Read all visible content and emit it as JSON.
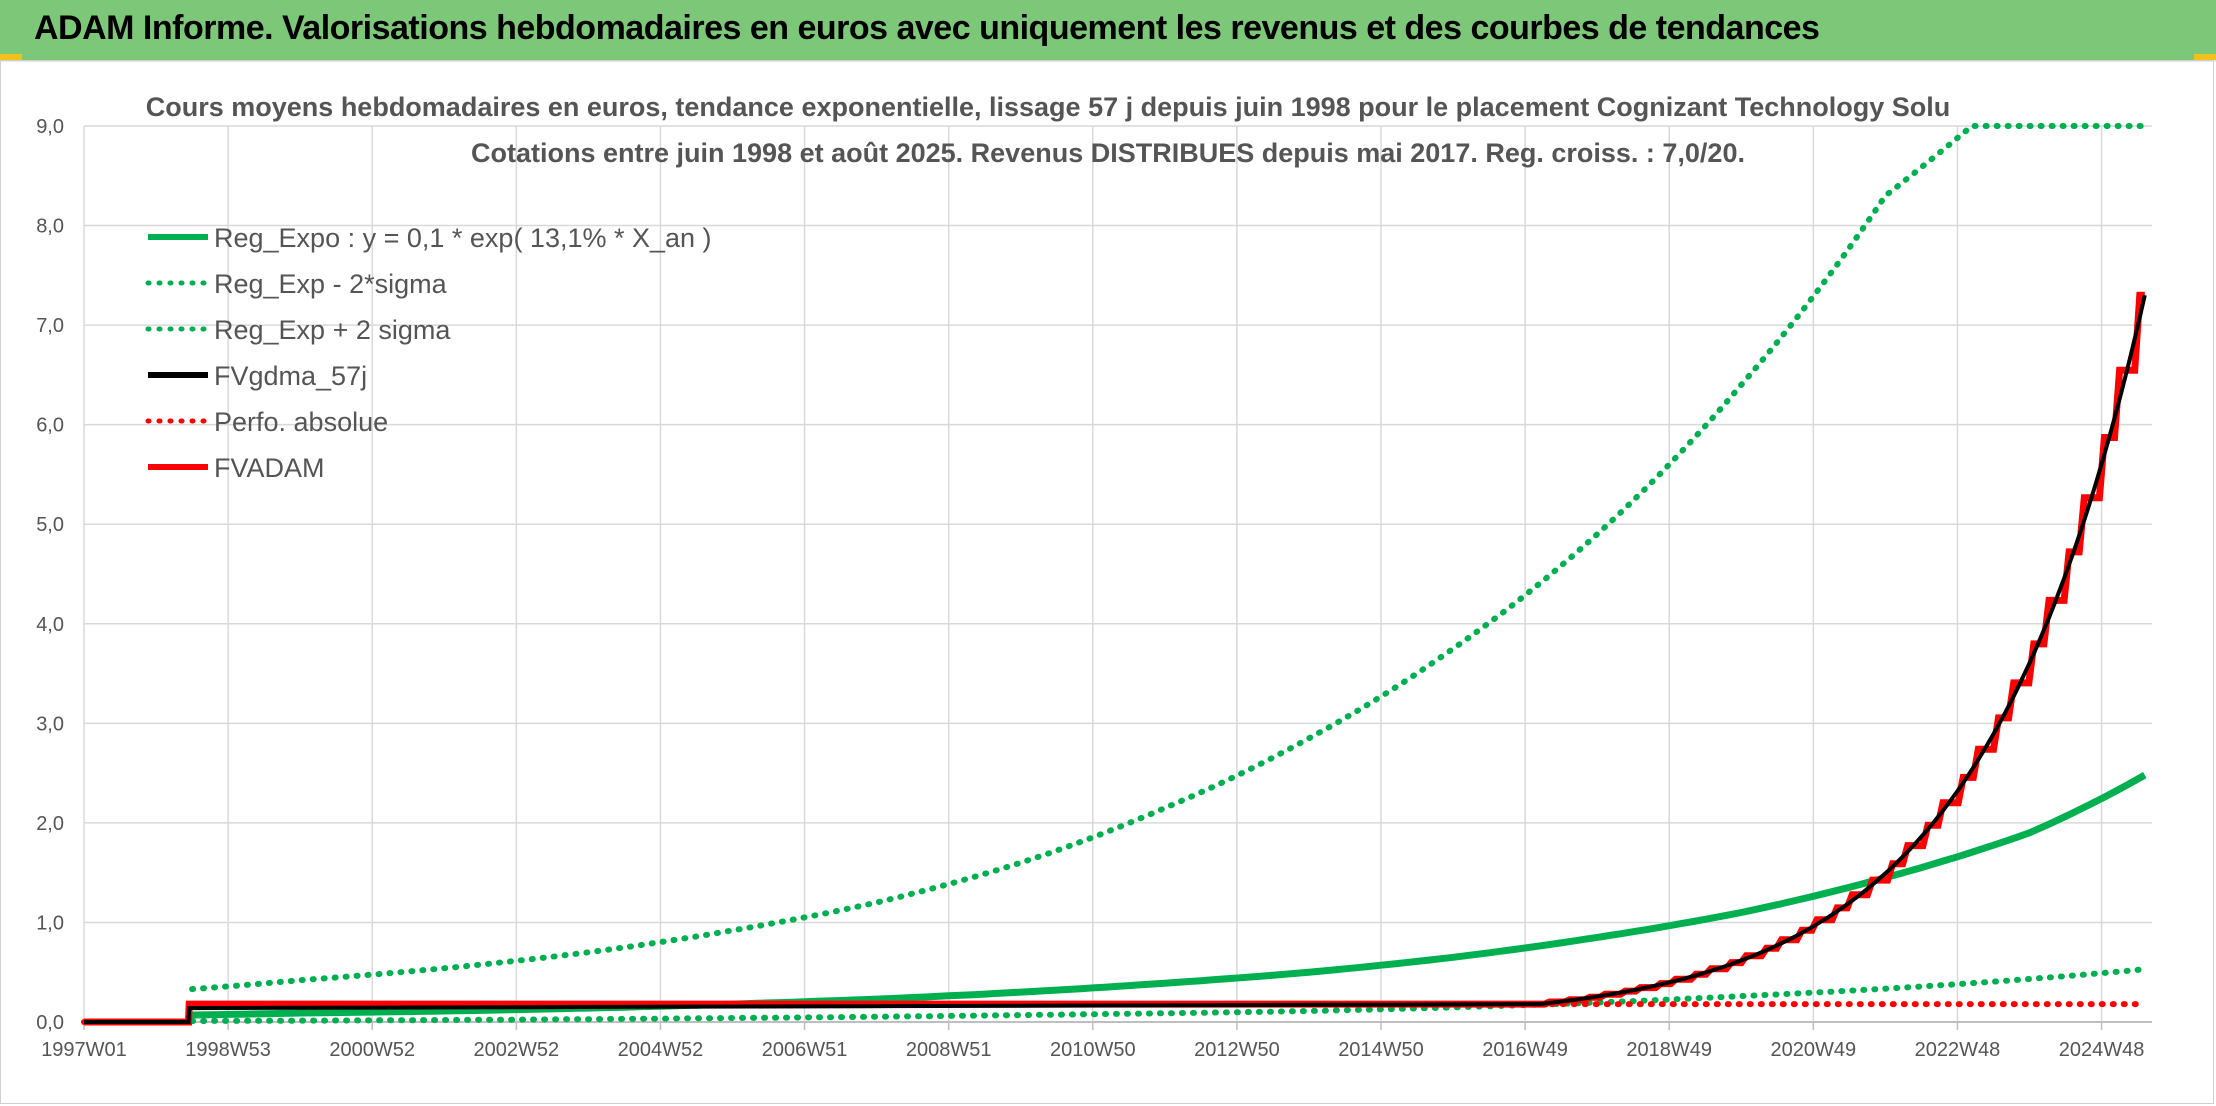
{
  "header": {
    "title": "ADAM Informe. Valorisations hebdomadaires en euros avec uniquement les revenus et des courbes de tendances"
  },
  "colors": {
    "header_bg": "#7dc878",
    "reg_green": "#00b050",
    "fv_black": "#000000",
    "adam_red": "#ff0000",
    "grid": "#d9d9d9"
  },
  "chart_data": {
    "type": "line",
    "title_line1": "Cours moyens hebdomadaires en euros, tendance exponentielle, lissage 57 j depuis juin 1998 pour le placement Cognizant Technology Solu",
    "title_line2": "Cotations entre juin 1998 et août 2025. Revenus DISTRIBUES depuis mai 2017. Reg. croiss. : 7,0/20.",
    "xlabel": "",
    "ylabel": "",
    "x_range": [
      1997.0,
      2025.7
    ],
    "ylim": [
      0,
      9
    ],
    "y_ticks": [
      "0,0",
      "1,0",
      "2,0",
      "3,0",
      "4,0",
      "5,0",
      "6,0",
      "7,0",
      "8,0",
      "9,0"
    ],
    "x_tick_labels": [
      "1997W01",
      "1998W53",
      "2000W52",
      "2002W52",
      "2004W52",
      "2006W51",
      "2008W51",
      "2010W50",
      "2012W50",
      "2014W50",
      "2016W49",
      "2018W49",
      "2020W49",
      "2022W48",
      "2024W48"
    ],
    "x_tick_values": [
      1997.0,
      1999.0,
      2001.0,
      2003.0,
      2005.0,
      2007.0,
      2009.0,
      2011.0,
      2013.0,
      2015.0,
      2017.0,
      2019.0,
      2021.0,
      2023.0,
      2025.0
    ],
    "grid": true,
    "legend_position": "top-left",
    "series": [
      {
        "name": "Reg_Expo : y = 0,1 * exp( 13,1% *  X_an )",
        "style": "solid",
        "color": "#00b050",
        "x": [
          1998.5,
          2000,
          2002,
          2004,
          2006,
          2008,
          2010,
          2012,
          2014,
          2016,
          2018,
          2020,
          2022,
          2024,
          2025.6
        ],
        "values": [
          0.07,
          0.09,
          0.11,
          0.14,
          0.18,
          0.23,
          0.3,
          0.39,
          0.5,
          0.65,
          0.85,
          1.1,
          1.45,
          1.9,
          2.48
        ]
      },
      {
        "name": "Reg_Exp - 2*sigma",
        "style": "dotted",
        "color": "#00b050",
        "x": [
          1998.5,
          2002,
          2006,
          2010,
          2014,
          2017,
          2020,
          2023,
          2025.6
        ],
        "values": [
          0.01,
          0.02,
          0.04,
          0.07,
          0.11,
          0.17,
          0.26,
          0.38,
          0.53
        ]
      },
      {
        "name": "Reg_Exp + 2 sigma",
        "style": "dotted",
        "color": "#00b050",
        "x": [
          1998.5,
          2000,
          2002,
          2004,
          2006,
          2008,
          2010,
          2012,
          2014,
          2016,
          2018,
          2020,
          2022,
          2023.2,
          2025.6
        ],
        "values": [
          0.33,
          0.42,
          0.54,
          0.7,
          0.92,
          1.2,
          1.6,
          2.15,
          2.85,
          3.75,
          4.9,
          6.4,
          8.3,
          9.0,
          9.0
        ]
      },
      {
        "name": "FVgdma_57j",
        "style": "solid",
        "color": "#000000",
        "x": [
          1997.0,
          1998.45,
          1998.46,
          2017.2,
          2025.6
        ],
        "values": [
          0.0,
          0.0,
          0.14,
          0.18,
          7.3
        ]
      },
      {
        "name": "Perfo. absolue",
        "style": "dotted",
        "color": "#ff0000",
        "x": [
          1997.0,
          1998.45,
          1998.46,
          2017.2,
          2025.6
        ],
        "values": [
          0.0,
          0.0,
          0.18,
          0.18,
          0.18
        ]
      },
      {
        "name": "FVADAM",
        "style": "solid",
        "color": "#ff0000",
        "x": [
          1997.0,
          1998.45,
          1998.46,
          2017.2,
          2025.6
        ],
        "values": [
          0.0,
          0.0,
          0.18,
          0.18,
          7.3
        ]
      }
    ]
  }
}
